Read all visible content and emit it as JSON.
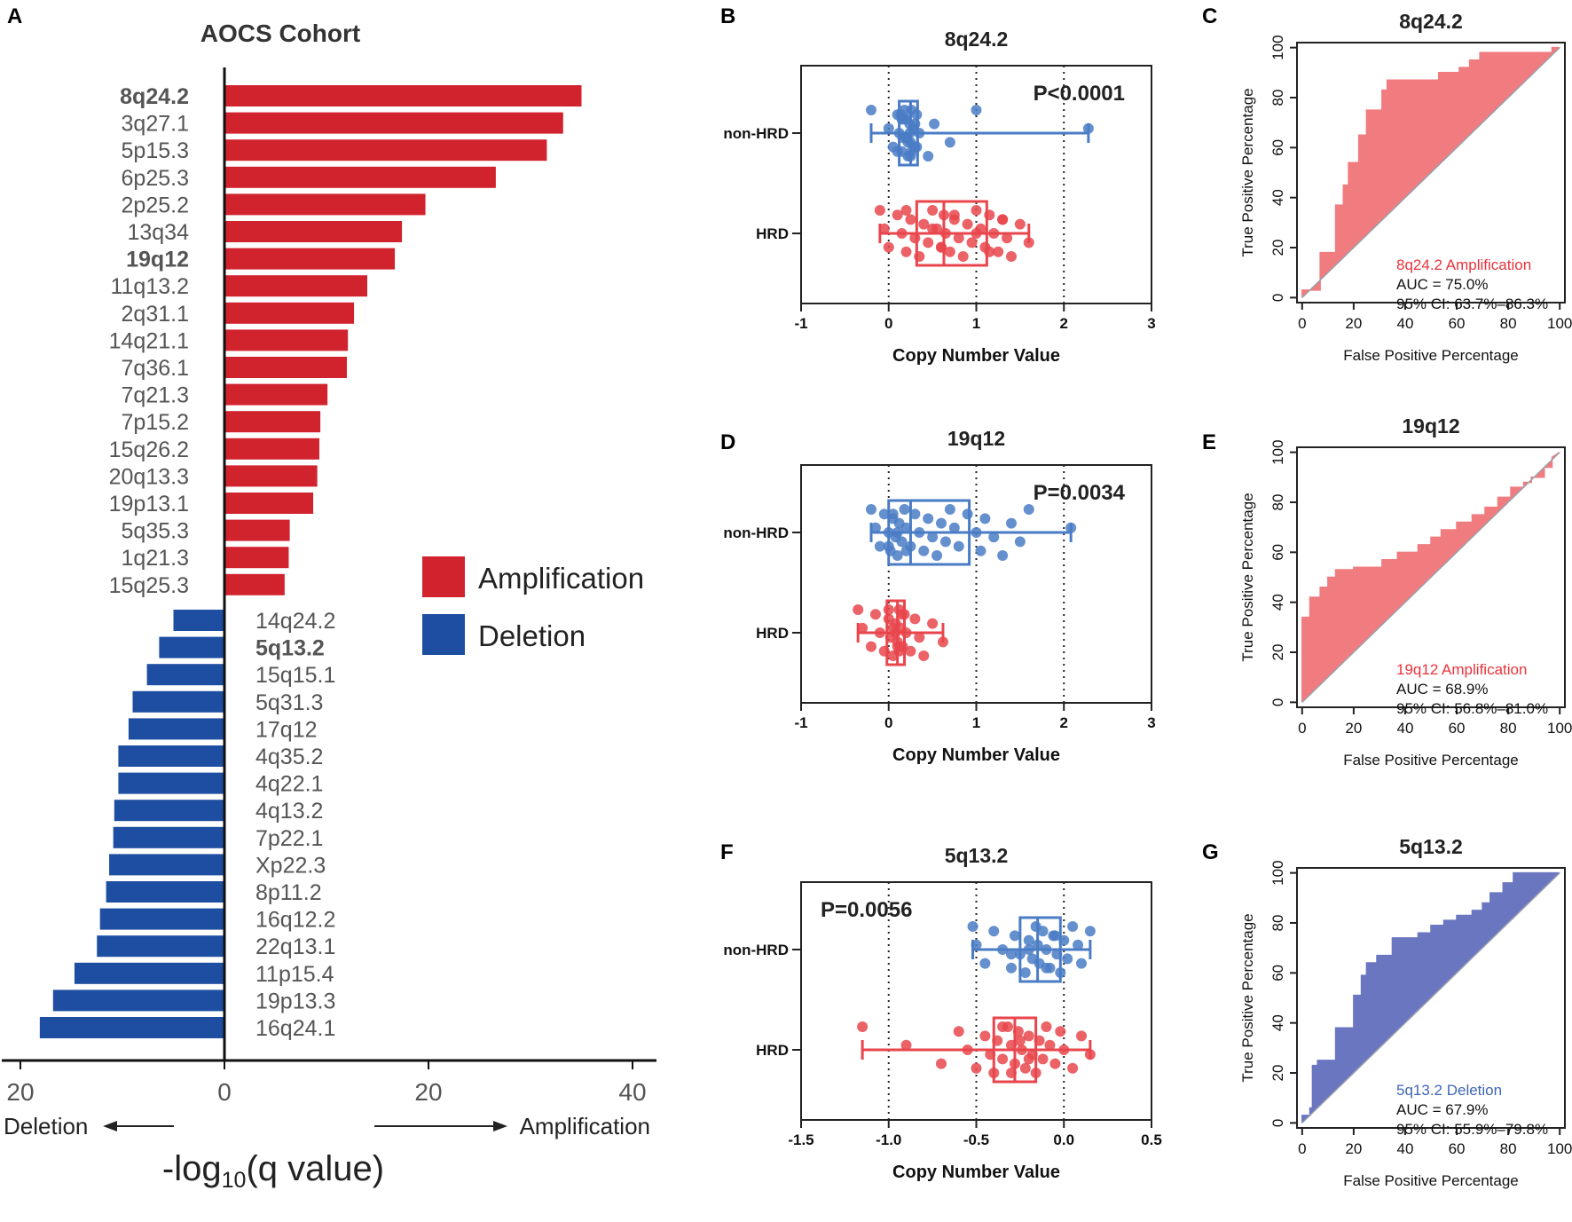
{
  "panel_labels": {
    "a": "A",
    "b": "B",
    "c": "C",
    "d": "D",
    "e": "E",
    "f": "F",
    "g": "G"
  },
  "colors": {
    "amplification": "#d1232e",
    "deletion": "#1d4ea1",
    "box_blue": "#4a7cc5",
    "box_red": "#e8464c",
    "roc_red": "#f07c80",
    "roc_blue": "#6a76c0",
    "roc_red_text": "#e8333b",
    "roc_blue_text": "#3d66b5"
  },
  "chart_data": [
    {
      "id": "A",
      "type": "bar",
      "title": "AOCS Cohort",
      "xlabel": "-log",
      "xlabel_sub": "10",
      "xlabel_rest": "(q value)",
      "xlim": [
        -20,
        42
      ],
      "ticks": [
        {
          "v": -20,
          "label": "20"
        },
        {
          "v": 0,
          "label": "0"
        },
        {
          "v": 20,
          "label": "20"
        },
        {
          "v": 40,
          "label": "40"
        }
      ],
      "direction_left": "Deletion",
      "direction_right": "Amplification",
      "legend": [
        {
          "name": "Amplification",
          "key": "amplification"
        },
        {
          "name": "Deletion",
          "key": "deletion"
        }
      ],
      "amplification": [
        {
          "label": "8q24.2",
          "value": 35.0,
          "bold": true
        },
        {
          "label": "3q27.1",
          "value": 33.2,
          "bold": false
        },
        {
          "label": "5p15.3",
          "value": 31.6,
          "bold": false
        },
        {
          "label": "6p25.3",
          "value": 26.6,
          "bold": false
        },
        {
          "label": "2p25.2",
          "value": 19.7,
          "bold": false
        },
        {
          "label": "13q34",
          "value": 17.4,
          "bold": false
        },
        {
          "label": "19q12",
          "value": 16.7,
          "bold": true
        },
        {
          "label": "11q13.2",
          "value": 14.0,
          "bold": false
        },
        {
          "label": "2q31.1",
          "value": 12.7,
          "bold": false
        },
        {
          "label": "14q21.1",
          "value": 12.1,
          "bold": false
        },
        {
          "label": "7q36.1",
          "value": 12.0,
          "bold": false
        },
        {
          "label": "7q21.3",
          "value": 10.1,
          "bold": false
        },
        {
          "label": "7p15.2",
          "value": 9.4,
          "bold": false
        },
        {
          "label": "15q26.2",
          "value": 9.3,
          "bold": false
        },
        {
          "label": "20q13.3",
          "value": 9.1,
          "bold": false
        },
        {
          "label": "19p13.1",
          "value": 8.7,
          "bold": false
        },
        {
          "label": "5q35.3",
          "value": 6.4,
          "bold": false
        },
        {
          "label": "1q21.3",
          "value": 6.3,
          "bold": false
        },
        {
          "label": "15q25.3",
          "value": 5.9,
          "bold": false
        }
      ],
      "deletion": [
        {
          "label": "14q24.2",
          "value": 5.0,
          "bold": false
        },
        {
          "label": "5q13.2",
          "value": 6.4,
          "bold": true
        },
        {
          "label": "15q15.1",
          "value": 7.6,
          "bold": false
        },
        {
          "label": "5q31.3",
          "value": 9.0,
          "bold": false
        },
        {
          "label": "17q12",
          "value": 9.4,
          "bold": false
        },
        {
          "label": "4q35.2",
          "value": 10.4,
          "bold": false
        },
        {
          "label": "4q22.1",
          "value": 10.4,
          "bold": false
        },
        {
          "label": "4q13.2",
          "value": 10.8,
          "bold": false
        },
        {
          "label": "7p22.1",
          "value": 10.9,
          "bold": false
        },
        {
          "label": "Xp22.3",
          "value": 11.3,
          "bold": false
        },
        {
          "label": "8p11.2",
          "value": 11.6,
          "bold": false
        },
        {
          "label": "16q12.2",
          "value": 12.2,
          "bold": false
        },
        {
          "label": "22q13.1",
          "value": 12.5,
          "bold": false
        },
        {
          "label": "11p15.4",
          "value": 14.7,
          "bold": false
        },
        {
          "label": "19p13.3",
          "value": 16.8,
          "bold": false
        },
        {
          "label": "16q24.1",
          "value": 18.1,
          "bold": false
        }
      ]
    },
    {
      "id": "B",
      "type": "scatter",
      "title": "8q24.2",
      "xlabel": "Copy Number Value",
      "xlim": [
        -1,
        3
      ],
      "ticks": [
        "-1",
        "0",
        "1",
        "2",
        "3"
      ],
      "tick_values": [
        -1,
        0,
        1,
        2,
        3
      ],
      "dotted_lines": [
        0,
        1,
        2
      ],
      "pvalue": "P<0.0001",
      "pvalue_pos": "top-right",
      "groups": [
        {
          "name": "non-HRD",
          "color_key": "box_blue",
          "min": -0.2,
          "q1": 0.12,
          "median": 0.25,
          "q3": 0.33,
          "max": 2.28,
          "points": [
            -0.2,
            0.0,
            0.05,
            0.1,
            0.12,
            0.15,
            0.18,
            0.2,
            0.22,
            0.24,
            0.25,
            0.26,
            0.28,
            0.3,
            0.32,
            0.35,
            0.1,
            0.15,
            0.2,
            0.25,
            0.3,
            0.22,
            0.18,
            0.28,
            0.32,
            0.14,
            0.24,
            0.26,
            0.2,
            0.16,
            0.45,
            0.52,
            0.7,
            1.0,
            2.28
          ]
        },
        {
          "name": "HRD",
          "color_key": "box_red",
          "min": -0.1,
          "q1": 0.32,
          "median": 0.63,
          "q3": 1.12,
          "max": 1.6,
          "points": [
            -0.1,
            -0.05,
            0.0,
            0.1,
            0.15,
            0.2,
            0.25,
            0.3,
            0.35,
            0.4,
            0.45,
            0.5,
            0.55,
            0.6,
            0.63,
            0.65,
            0.7,
            0.75,
            0.8,
            0.85,
            0.9,
            0.95,
            1.0,
            1.05,
            1.1,
            1.15,
            1.2,
            1.25,
            1.3,
            1.35,
            1.4,
            1.5,
            1.6,
            0.2,
            0.5,
            0.6,
            0.75,
            1.0,
            1.15,
            1.3
          ]
        }
      ]
    },
    {
      "id": "D",
      "type": "scatter",
      "title": "19q12",
      "xlabel": "Copy Number Value",
      "xlim": [
        -1,
        3
      ],
      "ticks": [
        "-1",
        "0",
        "1",
        "2",
        "3"
      ],
      "tick_values": [
        -1,
        0,
        1,
        2,
        3
      ],
      "dotted_lines": [
        0,
        1,
        2
      ],
      "pvalue": "P=0.0034",
      "pvalue_pos": "top-right",
      "groups": [
        {
          "name": "non-HRD",
          "color_key": "box_blue",
          "min": -0.2,
          "q1": 0.0,
          "median": 0.25,
          "q3": 0.92,
          "max": 2.08,
          "points": [
            -0.2,
            -0.15,
            -0.1,
            -0.05,
            0.0,
            0.02,
            0.05,
            0.08,
            0.1,
            0.12,
            0.15,
            0.18,
            0.2,
            0.25,
            0.3,
            0.35,
            0.4,
            0.45,
            0.5,
            0.55,
            0.6,
            0.65,
            0.7,
            0.75,
            0.8,
            0.9,
            1.0,
            1.05,
            1.1,
            1.2,
            1.3,
            1.4,
            1.5,
            1.6,
            2.08,
            0.0,
            0.05,
            0.1,
            0.2
          ]
        },
        {
          "name": "HRD",
          "color_key": "box_red",
          "min": -0.35,
          "q1": -0.02,
          "median": 0.1,
          "q3": 0.18,
          "max": 0.62,
          "points": [
            -0.35,
            -0.3,
            -0.2,
            -0.15,
            -0.1,
            -0.05,
            0.0,
            0.02,
            0.05,
            0.08,
            0.1,
            0.12,
            0.14,
            0.16,
            0.18,
            0.2,
            0.25,
            0.3,
            0.35,
            0.4,
            0.5,
            0.62,
            0.0,
            0.05,
            0.1,
            0.15,
            0.08,
            0.12
          ]
        }
      ]
    },
    {
      "id": "F",
      "type": "scatter",
      "title": "5q13.2",
      "xlabel": "Copy Number Value",
      "xlim": [
        -1.5,
        0.5
      ],
      "ticks": [
        "-1.5",
        "-1.0",
        "-0.5",
        "0.0",
        "0.5"
      ],
      "tick_values": [
        -1.5,
        -1.0,
        -0.5,
        0.0,
        0.5
      ],
      "dotted_lines": [
        -1.0,
        -0.5,
        0.0
      ],
      "pvalue": "P=0.0056",
      "pvalue_pos": "top-left",
      "groups": [
        {
          "name": "non-HRD",
          "color_key": "box_blue",
          "min": -0.52,
          "q1": -0.25,
          "median": -0.15,
          "q3": -0.02,
          "max": 0.15,
          "points": [
            -0.52,
            -0.5,
            -0.45,
            -0.4,
            -0.35,
            -0.3,
            -0.28,
            -0.25,
            -0.22,
            -0.2,
            -0.18,
            -0.16,
            -0.15,
            -0.14,
            -0.12,
            -0.1,
            -0.08,
            -0.06,
            -0.04,
            -0.02,
            0.0,
            0.02,
            0.05,
            0.08,
            0.1,
            0.15,
            -0.2,
            -0.1,
            -0.05,
            -0.3
          ]
        },
        {
          "name": "HRD",
          "color_key": "box_red",
          "min": -1.15,
          "q1": -0.4,
          "median": -0.28,
          "q3": -0.16,
          "max": 0.15,
          "points": [
            -1.15,
            -0.9,
            -0.7,
            -0.6,
            -0.55,
            -0.5,
            -0.45,
            -0.42,
            -0.4,
            -0.38,
            -0.35,
            -0.32,
            -0.3,
            -0.28,
            -0.26,
            -0.24,
            -0.22,
            -0.2,
            -0.18,
            -0.16,
            -0.14,
            -0.12,
            -0.1,
            -0.08,
            -0.05,
            -0.02,
            0.0,
            0.05,
            0.1,
            0.15,
            -0.3,
            -0.25,
            -0.2,
            -0.35
          ]
        }
      ]
    },
    {
      "id": "C",
      "type": "area",
      "title": "8q24.2",
      "xlabel": "False Positive Percentage",
      "ylabel": "True Positive Percentage",
      "xlim": [
        0,
        100
      ],
      "ylim": [
        0,
        100
      ],
      "ticks": [
        0,
        20,
        40,
        60,
        80,
        100
      ],
      "color_key": "roc_red",
      "text_color_key": "roc_red_text",
      "legend_name": "8q24.2 Amplification",
      "auc": "AUC = 75.0%",
      "ci": "95% CI: 63.7%–86.3%",
      "points": [
        [
          0,
          0
        ],
        [
          0,
          3
        ],
        [
          7,
          3
        ],
        [
          7,
          18
        ],
        [
          13,
          18
        ],
        [
          13,
          37
        ],
        [
          16,
          37
        ],
        [
          16,
          45
        ],
        [
          18,
          45
        ],
        [
          18,
          54
        ],
        [
          22,
          54
        ],
        [
          22,
          65
        ],
        [
          25,
          65
        ],
        [
          25,
          75
        ],
        [
          31,
          75
        ],
        [
          31,
          83
        ],
        [
          33,
          83
        ],
        [
          33,
          87
        ],
        [
          53,
          87
        ],
        [
          53,
          90
        ],
        [
          61,
          90
        ],
        [
          61,
          92
        ],
        [
          65,
          92
        ],
        [
          65,
          95
        ],
        [
          69,
          95
        ],
        [
          69,
          98
        ],
        [
          97,
          98
        ],
        [
          97,
          100
        ],
        [
          100,
          100
        ]
      ]
    },
    {
      "id": "E",
      "type": "area",
      "title": "19q12",
      "xlabel": "False Positive Percentage",
      "ylabel": "True Positive Percentage",
      "xlim": [
        0,
        100
      ],
      "ylim": [
        0,
        100
      ],
      "ticks": [
        0,
        20,
        40,
        60,
        80,
        100
      ],
      "color_key": "roc_red",
      "text_color_key": "roc_red_text",
      "legend_name": "19q12 Amplification",
      "auc": "AUC = 68.9%",
      "ci": "95% CI: 56.8%–81.0%",
      "points": [
        [
          0,
          0
        ],
        [
          0,
          34
        ],
        [
          3,
          34
        ],
        [
          3,
          42
        ],
        [
          7,
          42
        ],
        [
          7,
          46
        ],
        [
          10,
          46
        ],
        [
          10,
          50
        ],
        [
          13,
          50
        ],
        [
          13,
          53
        ],
        [
          20,
          53
        ],
        [
          20,
          54
        ],
        [
          31,
          54
        ],
        [
          31,
          57
        ],
        [
          37,
          57
        ],
        [
          37,
          60
        ],
        [
          45,
          60
        ],
        [
          45,
          63
        ],
        [
          50,
          63
        ],
        [
          50,
          66
        ],
        [
          54,
          66
        ],
        [
          54,
          69
        ],
        [
          60,
          69
        ],
        [
          60,
          72
        ],
        [
          66,
          72
        ],
        [
          66,
          75
        ],
        [
          71,
          75
        ],
        [
          71,
          78
        ],
        [
          76,
          78
        ],
        [
          76,
          82
        ],
        [
          81,
          82
        ],
        [
          81,
          86
        ],
        [
          86,
          86
        ],
        [
          86,
          88
        ],
        [
          89,
          88
        ],
        [
          89,
          90
        ],
        [
          94,
          90
        ],
        [
          94,
          94
        ],
        [
          97,
          94
        ],
        [
          97,
          98
        ],
        [
          100,
          100
        ]
      ]
    },
    {
      "id": "G",
      "type": "area",
      "title": "5q13.2",
      "xlabel": "False Positive Percentage",
      "ylabel": "True Positive Percentage",
      "xlim": [
        0,
        100
      ],
      "ylim": [
        0,
        100
      ],
      "ticks": [
        0,
        20,
        40,
        60,
        80,
        100
      ],
      "color_key": "roc_blue",
      "text_color_key": "roc_blue_text",
      "legend_name": "5q13.2 Deletion",
      "auc": "AUC = 67.9%",
      "ci": "95% CI: 55.9%–79.8%",
      "points": [
        [
          0,
          0
        ],
        [
          0,
          3
        ],
        [
          3,
          3
        ],
        [
          3,
          6
        ],
        [
          4,
          6
        ],
        [
          4,
          23
        ],
        [
          6,
          23
        ],
        [
          6,
          25
        ],
        [
          13,
          25
        ],
        [
          13,
          38
        ],
        [
          20,
          38
        ],
        [
          20,
          51
        ],
        [
          23,
          51
        ],
        [
          23,
          59
        ],
        [
          25,
          59
        ],
        [
          25,
          64
        ],
        [
          29,
          64
        ],
        [
          29,
          67
        ],
        [
          35,
          67
        ],
        [
          35,
          74
        ],
        [
          45,
          74
        ],
        [
          45,
          76
        ],
        [
          50,
          76
        ],
        [
          50,
          79
        ],
        [
          55,
          79
        ],
        [
          55,
          81
        ],
        [
          60,
          81
        ],
        [
          60,
          83
        ],
        [
          66,
          83
        ],
        [
          66,
          85
        ],
        [
          70,
          85
        ],
        [
          70,
          88
        ],
        [
          73,
          88
        ],
        [
          73,
          92
        ],
        [
          78,
          92
        ],
        [
          78,
          96
        ],
        [
          82,
          96
        ],
        [
          82,
          100
        ],
        [
          100,
          100
        ]
      ]
    }
  ]
}
